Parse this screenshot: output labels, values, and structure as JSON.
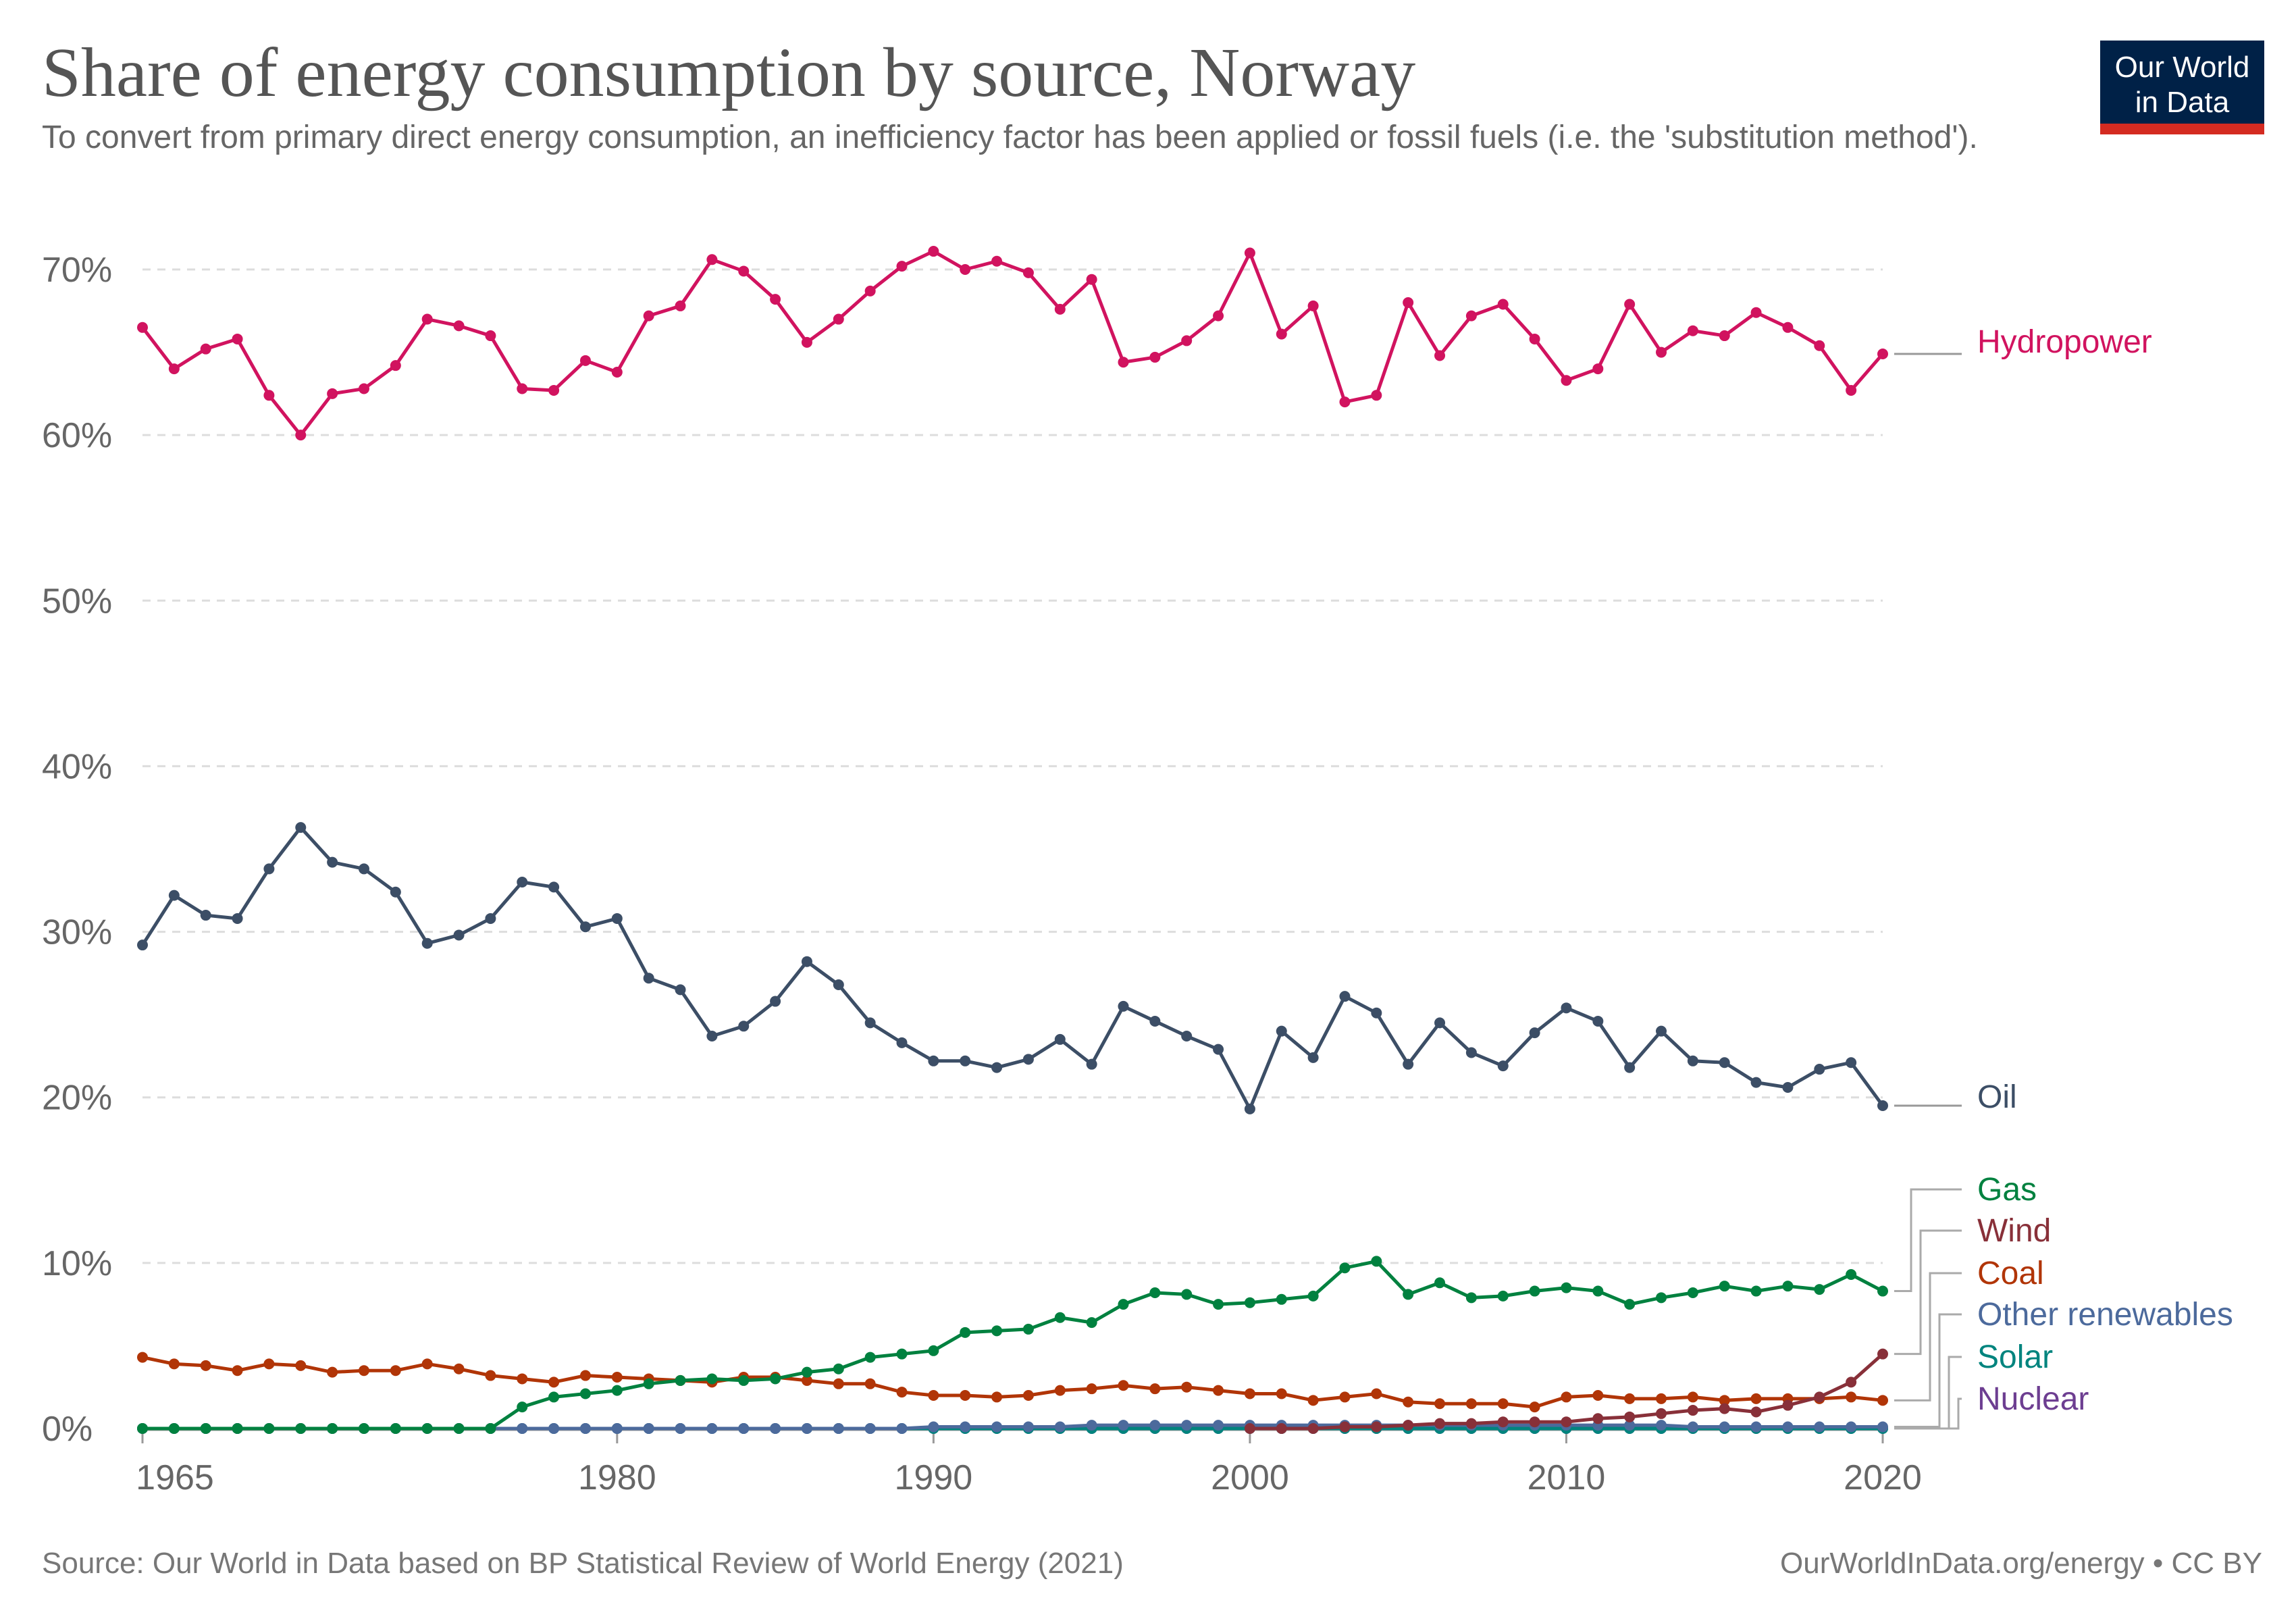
{
  "title": "Share of energy consumption by source, Norway",
  "subtitle": "To convert from primary direct energy consumption, an inefficiency factor has been applied or fossil fuels (i.e. the 'substitution method').",
  "logo": {
    "line1": "Our World",
    "line2": "in Data"
  },
  "footer": {
    "source": "Source: Our World in Data based on BP Statistical Review of World Energy (2021)",
    "license": "OurWorldInData.org/energy • CC BY"
  },
  "chart_data": {
    "type": "line",
    "x_start": 1965,
    "x_end": 2020,
    "x_ticks": [
      "1965",
      "1980",
      "1990",
      "2000",
      "2010",
      "2020"
    ],
    "y_ticks": [
      "0%",
      "10%",
      "20%",
      "30%",
      "40%",
      "50%",
      "60%",
      "70%"
    ],
    "ylim": [
      0,
      70
    ],
    "grid": "horizontal dashed",
    "legend": "right, line-end labels",
    "series": [
      {
        "name": "Hydropower",
        "color": "#d1135f",
        "values": [
          66.5,
          64.0,
          65.2,
          65.8,
          62.4,
          60.0,
          62.5,
          62.8,
          64.2,
          67.0,
          66.6,
          66.0,
          62.8,
          62.7,
          64.5,
          63.8,
          67.2,
          67.8,
          70.6,
          69.9,
          68.2,
          65.6,
          67.0,
          68.7,
          70.2,
          71.1,
          70.0,
          70.5,
          69.8,
          67.6,
          69.4,
          64.4,
          64.7,
          65.7,
          67.2,
          71.0,
          66.1,
          67.8,
          62.0,
          62.4,
          68.0,
          64.8,
          67.2,
          67.9,
          65.8,
          63.3,
          64.0,
          67.9,
          65.0,
          66.3,
          66.0,
          67.4,
          66.5,
          65.4,
          62.7,
          64.9
        ]
      },
      {
        "name": "Oil",
        "color": "#3c4e66",
        "values": [
          29.2,
          32.2,
          31.0,
          30.8,
          33.8,
          36.3,
          34.2,
          33.8,
          32.4,
          29.3,
          29.8,
          30.8,
          33.0,
          32.7,
          30.3,
          30.8,
          27.2,
          26.5,
          23.7,
          24.3,
          25.8,
          28.2,
          26.8,
          24.5,
          23.3,
          22.2,
          22.2,
          21.8,
          22.3,
          23.5,
          22.0,
          25.5,
          24.6,
          23.7,
          22.9,
          19.3,
          24.0,
          22.4,
          26.1,
          25.1,
          22.0,
          24.5,
          22.7,
          21.9,
          23.9,
          25.4,
          24.6,
          21.8,
          24.0,
          22.2,
          22.1,
          20.9,
          20.6,
          21.7,
          22.1,
          19.5
        ]
      },
      {
        "name": "Gas",
        "color": "#00813f",
        "values": [
          0,
          0,
          0,
          0,
          0,
          0,
          0,
          0,
          0,
          0,
          0,
          0,
          1.3,
          1.9,
          2.1,
          2.3,
          2.7,
          2.9,
          3.0,
          2.9,
          3.0,
          3.4,
          3.6,
          4.3,
          4.5,
          4.7,
          5.8,
          5.9,
          6.0,
          6.7,
          6.4,
          7.5,
          8.2,
          8.1,
          7.5,
          7.6,
          7.8,
          8.0,
          9.7,
          10.1,
          8.1,
          8.8,
          7.9,
          8.0,
          8.3,
          8.5,
          8.3,
          7.5,
          7.9,
          8.2,
          8.6,
          8.3,
          8.6,
          8.4,
          9.3,
          8.3
        ]
      },
      {
        "name": "Wind",
        "color": "#883039",
        "values": [
          null,
          null,
          null,
          null,
          null,
          null,
          null,
          null,
          null,
          null,
          null,
          null,
          null,
          null,
          null,
          null,
          null,
          null,
          null,
          null,
          null,
          null,
          null,
          null,
          null,
          null,
          null,
          null,
          null,
          null,
          null,
          null,
          null,
          null,
          null,
          0,
          0,
          0,
          0.1,
          0.1,
          0.2,
          0.3,
          0.3,
          0.4,
          0.4,
          0.4,
          0.6,
          0.7,
          0.9,
          1.1,
          1.2,
          1.0,
          1.4,
          1.9,
          2.8,
          4.5
        ]
      },
      {
        "name": "Coal",
        "color": "#b13507",
        "values": [
          4.3,
          3.9,
          3.8,
          3.5,
          3.9,
          3.8,
          3.4,
          3.5,
          3.5,
          3.9,
          3.6,
          3.2,
          3.0,
          2.8,
          3.2,
          3.1,
          3.0,
          2.9,
          2.8,
          3.1,
          3.1,
          2.9,
          2.7,
          2.7,
          2.2,
          2.0,
          2.0,
          1.9,
          2.0,
          2.3,
          2.4,
          2.6,
          2.4,
          2.5,
          2.3,
          2.1,
          2.1,
          1.7,
          1.9,
          2.1,
          1.6,
          1.5,
          1.5,
          1.5,
          1.3,
          1.9,
          2.0,
          1.8,
          1.8,
          1.9,
          1.7,
          1.8,
          1.8,
          1.8,
          1.9,
          1.7
        ]
      },
      {
        "name": "Other renewables",
        "color": "#4c6a9c",
        "values": [
          0,
          0,
          0,
          0,
          0,
          0,
          0,
          0,
          0,
          0,
          0,
          0,
          0,
          0,
          0,
          0,
          0,
          0,
          0,
          0,
          0,
          0,
          0,
          0,
          0,
          0.1,
          0.1,
          0.1,
          0.1,
          0.1,
          0.2,
          0.2,
          0.2,
          0.2,
          0.2,
          0.2,
          0.2,
          0.2,
          0.2,
          0.2,
          0.2,
          0.2,
          0.2,
          0.2,
          0.2,
          0.2,
          0.2,
          0.2,
          0.2,
          0.1,
          0.1,
          0.1,
          0.1,
          0.1,
          0.1,
          0.1
        ]
      },
      {
        "name": "Solar",
        "color": "#00847e",
        "values": [
          0,
          0,
          0,
          0,
          0,
          0,
          0,
          0,
          0,
          0,
          0,
          0,
          0,
          0,
          0,
          0,
          0,
          0,
          0,
          0,
          0,
          0,
          0,
          0,
          0,
          0,
          0,
          0,
          0,
          0,
          0,
          0,
          0,
          0,
          0,
          0,
          0,
          0,
          0,
          0,
          0,
          0,
          0,
          0,
          0,
          0,
          0,
          0,
          0,
          0,
          0,
          0,
          0,
          0,
          0,
          0
        ]
      },
      {
        "name": "Nuclear",
        "color": "#6d3e91",
        "values": [
          0,
          0,
          0,
          0,
          0,
          0,
          0,
          0,
          0,
          0,
          0,
          0,
          0,
          0,
          0,
          0,
          0,
          0,
          0,
          0,
          0,
          0,
          0,
          0,
          0,
          0,
          0,
          0,
          0,
          0,
          0,
          0,
          0,
          0,
          0,
          0,
          0,
          0,
          0,
          0,
          0,
          0,
          0,
          0,
          0,
          0,
          0,
          0,
          0,
          0,
          0,
          0,
          0,
          0,
          0,
          0
        ]
      }
    ]
  }
}
